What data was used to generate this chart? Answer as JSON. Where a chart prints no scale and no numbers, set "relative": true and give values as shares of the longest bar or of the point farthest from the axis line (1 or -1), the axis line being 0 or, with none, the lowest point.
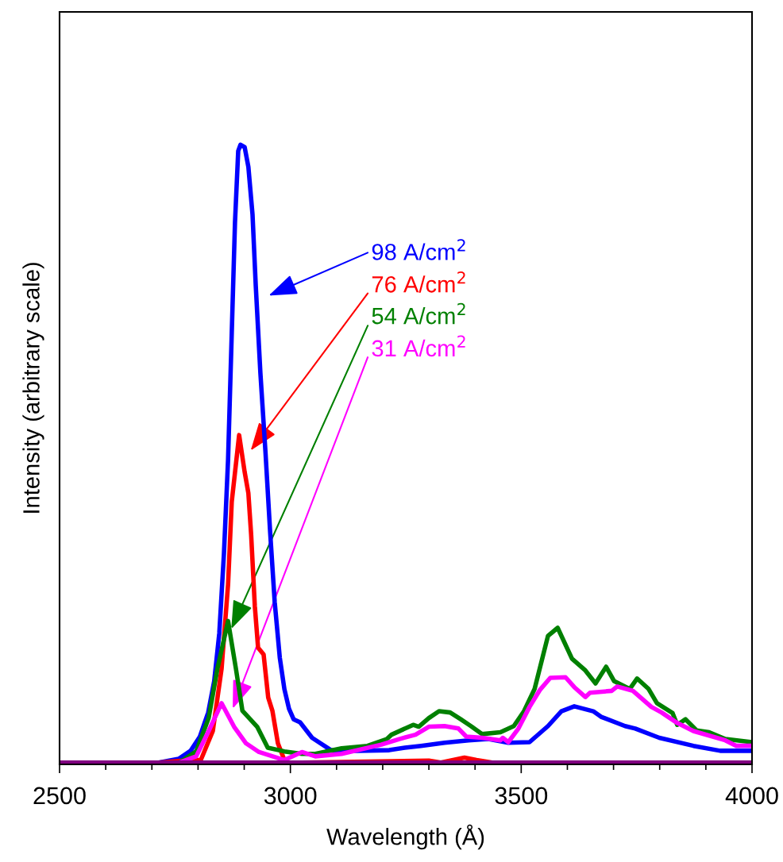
{
  "chart_data": {
    "type": "line",
    "relative": true,
    "xlabel": "Wavelength (Å)",
    "ylabel": "Intensity (arbitrary scale)",
    "xlim": [
      2500,
      4000
    ],
    "xticks": [
      2500,
      {
        "value": 2600,
        "label": null
      },
      {
        "value": 2700,
        "label": null
      },
      {
        "value": 2800,
        "label": null
      },
      {
        "value": 2900,
        "label": null
      },
      3000,
      {
        "value": 3100,
        "label": null
      },
      {
        "value": 3200,
        "label": null
      },
      {
        "value": 3300,
        "label": null
      },
      {
        "value": 3400,
        "label": null
      },
      3500,
      {
        "value": 3600,
        "label": null
      },
      {
        "value": 3700,
        "label": null
      },
      {
        "value": 3800,
        "label": null
      },
      {
        "value": 3900,
        "label": null
      },
      4000
    ],
    "grid": false,
    "legend": false,
    "marker": "none",
    "line_style": "solid",
    "series": [
      {
        "color": "#0000ff",
        "x": [
          2500,
          2715,
          2758,
          2784,
          2804,
          2822,
          2835,
          2846,
          2856,
          2865,
          2873,
          2880,
          2887,
          2892,
          2901,
          2909,
          2918,
          2925,
          2935,
          2946,
          2956,
          2966,
          2977,
          2987,
          2997,
          3007,
          3021,
          3047,
          3088,
          3145,
          3214,
          3248,
          3283,
          3334,
          3386,
          3429,
          3472,
          3518,
          3558,
          3587,
          3615,
          3656,
          3673,
          3725,
          3747,
          3799,
          3873,
          3931,
          4000
        ],
        "values": [
          0,
          0,
          0.006,
          0.019,
          0.042,
          0.081,
          0.132,
          0.209,
          0.337,
          0.49,
          0.695,
          0.874,
          0.99,
          1.0,
          0.996,
          0.964,
          0.887,
          0.772,
          0.631,
          0.503,
          0.375,
          0.26,
          0.17,
          0.119,
          0.087,
          0.07,
          0.065,
          0.04,
          0.02,
          0.019,
          0.02,
          0.024,
          0.027,
          0.032,
          0.036,
          0.038,
          0.032,
          0.033,
          0.059,
          0.083,
          0.091,
          0.083,
          0.074,
          0.059,
          0.055,
          0.04,
          0.027,
          0.019,
          0.019
        ]
      },
      {
        "color": "#ff0000",
        "x": [
          2500,
          2715,
          2784,
          2806,
          2832,
          2851,
          2865,
          2873,
          2889,
          2901,
          2909,
          2915,
          2923,
          2930,
          2942,
          2952,
          2961,
          2973,
          2987,
          2997,
          3025,
          3300,
          3326,
          3377,
          3403,
          3437,
          4000
        ],
        "values": [
          0,
          0,
          0.004,
          0.004,
          0.051,
          0.152,
          0.288,
          0.422,
          0.53,
          0.47,
          0.436,
          0.369,
          0.253,
          0.186,
          0.175,
          0.105,
          0.084,
          0.031,
          0.004,
          0,
          0,
          0.003,
          0,
          0.008,
          0.004,
          0,
          0
        ]
      },
      {
        "color": "#008000",
        "x": [
          2500,
          2760,
          2796,
          2823,
          2842,
          2865,
          2882,
          2896,
          2928,
          2951,
          2987,
          3025,
          3054,
          3111,
          3167,
          3209,
          3219,
          3266,
          3278,
          3300,
          3322,
          3346,
          3369,
          3391,
          3415,
          3455,
          3484,
          3506,
          3529,
          3558,
          3579,
          3610,
          3639,
          3661,
          3684,
          3701,
          3735,
          3751,
          3776,
          3794,
          3828,
          3838,
          3856,
          3880,
          3907,
          3942,
          4000
        ],
        "values": [
          0,
          0,
          0.018,
          0.072,
          0.152,
          0.229,
          0.152,
          0.084,
          0.058,
          0.024,
          0.018,
          0.014,
          0.014,
          0.023,
          0.027,
          0.038,
          0.045,
          0.061,
          0.058,
          0.072,
          0.083,
          0.081,
          0.07,
          0.059,
          0.046,
          0.049,
          0.059,
          0.083,
          0.119,
          0.205,
          0.218,
          0.168,
          0.149,
          0.128,
          0.155,
          0.132,
          0.119,
          0.136,
          0.119,
          0.096,
          0.08,
          0.061,
          0.07,
          0.052,
          0.049,
          0.038,
          0.033
        ]
      },
      {
        "color": "#ff00ff",
        "x": [
          2500,
          2760,
          2796,
          2823,
          2851,
          2878,
          2904,
          2932,
          2987,
          3025,
          3054,
          3111,
          3197,
          3236,
          3271,
          3300,
          3334,
          3364,
          3381,
          3415,
          3455,
          3460,
          3472,
          3494,
          3518,
          3541,
          3563,
          3596,
          3615,
          3639,
          3649,
          3696,
          3708,
          3742,
          3782,
          3804,
          3838,
          3873,
          3942,
          3966,
          4000
        ],
        "values": [
          0,
          0,
          0.01,
          0.051,
          0.096,
          0.058,
          0.031,
          0.017,
          0.004,
          0.017,
          0.01,
          0.014,
          0.029,
          0.038,
          0.045,
          0.058,
          0.059,
          0.055,
          0.042,
          0.04,
          0.036,
          0.04,
          0.033,
          0.055,
          0.09,
          0.118,
          0.137,
          0.138,
          0.122,
          0.106,
          0.113,
          0.116,
          0.123,
          0.116,
          0.09,
          0.081,
          0.064,
          0.051,
          0.036,
          0.027,
          0.027
        ]
      },
      {
        "color": "#800080",
        "x": [
          2500,
          2600,
          2700,
          2800,
          2900,
          3000,
          3100,
          3200,
          3300,
          3400,
          3500,
          3600,
          3700,
          3800,
          3900,
          4000
        ],
        "values": [
          0,
          0,
          0,
          0,
          0,
          0,
          0,
          0,
          0,
          0,
          0,
          0,
          0,
          0,
          0,
          0
        ]
      }
    ],
    "annotations": [
      "98 A/cm$^{2}$",
      "76 A/cm$^{2}$",
      "54 A/cm$^{2}$",
      "31 A/cm$^{2}$"
    ]
  }
}
